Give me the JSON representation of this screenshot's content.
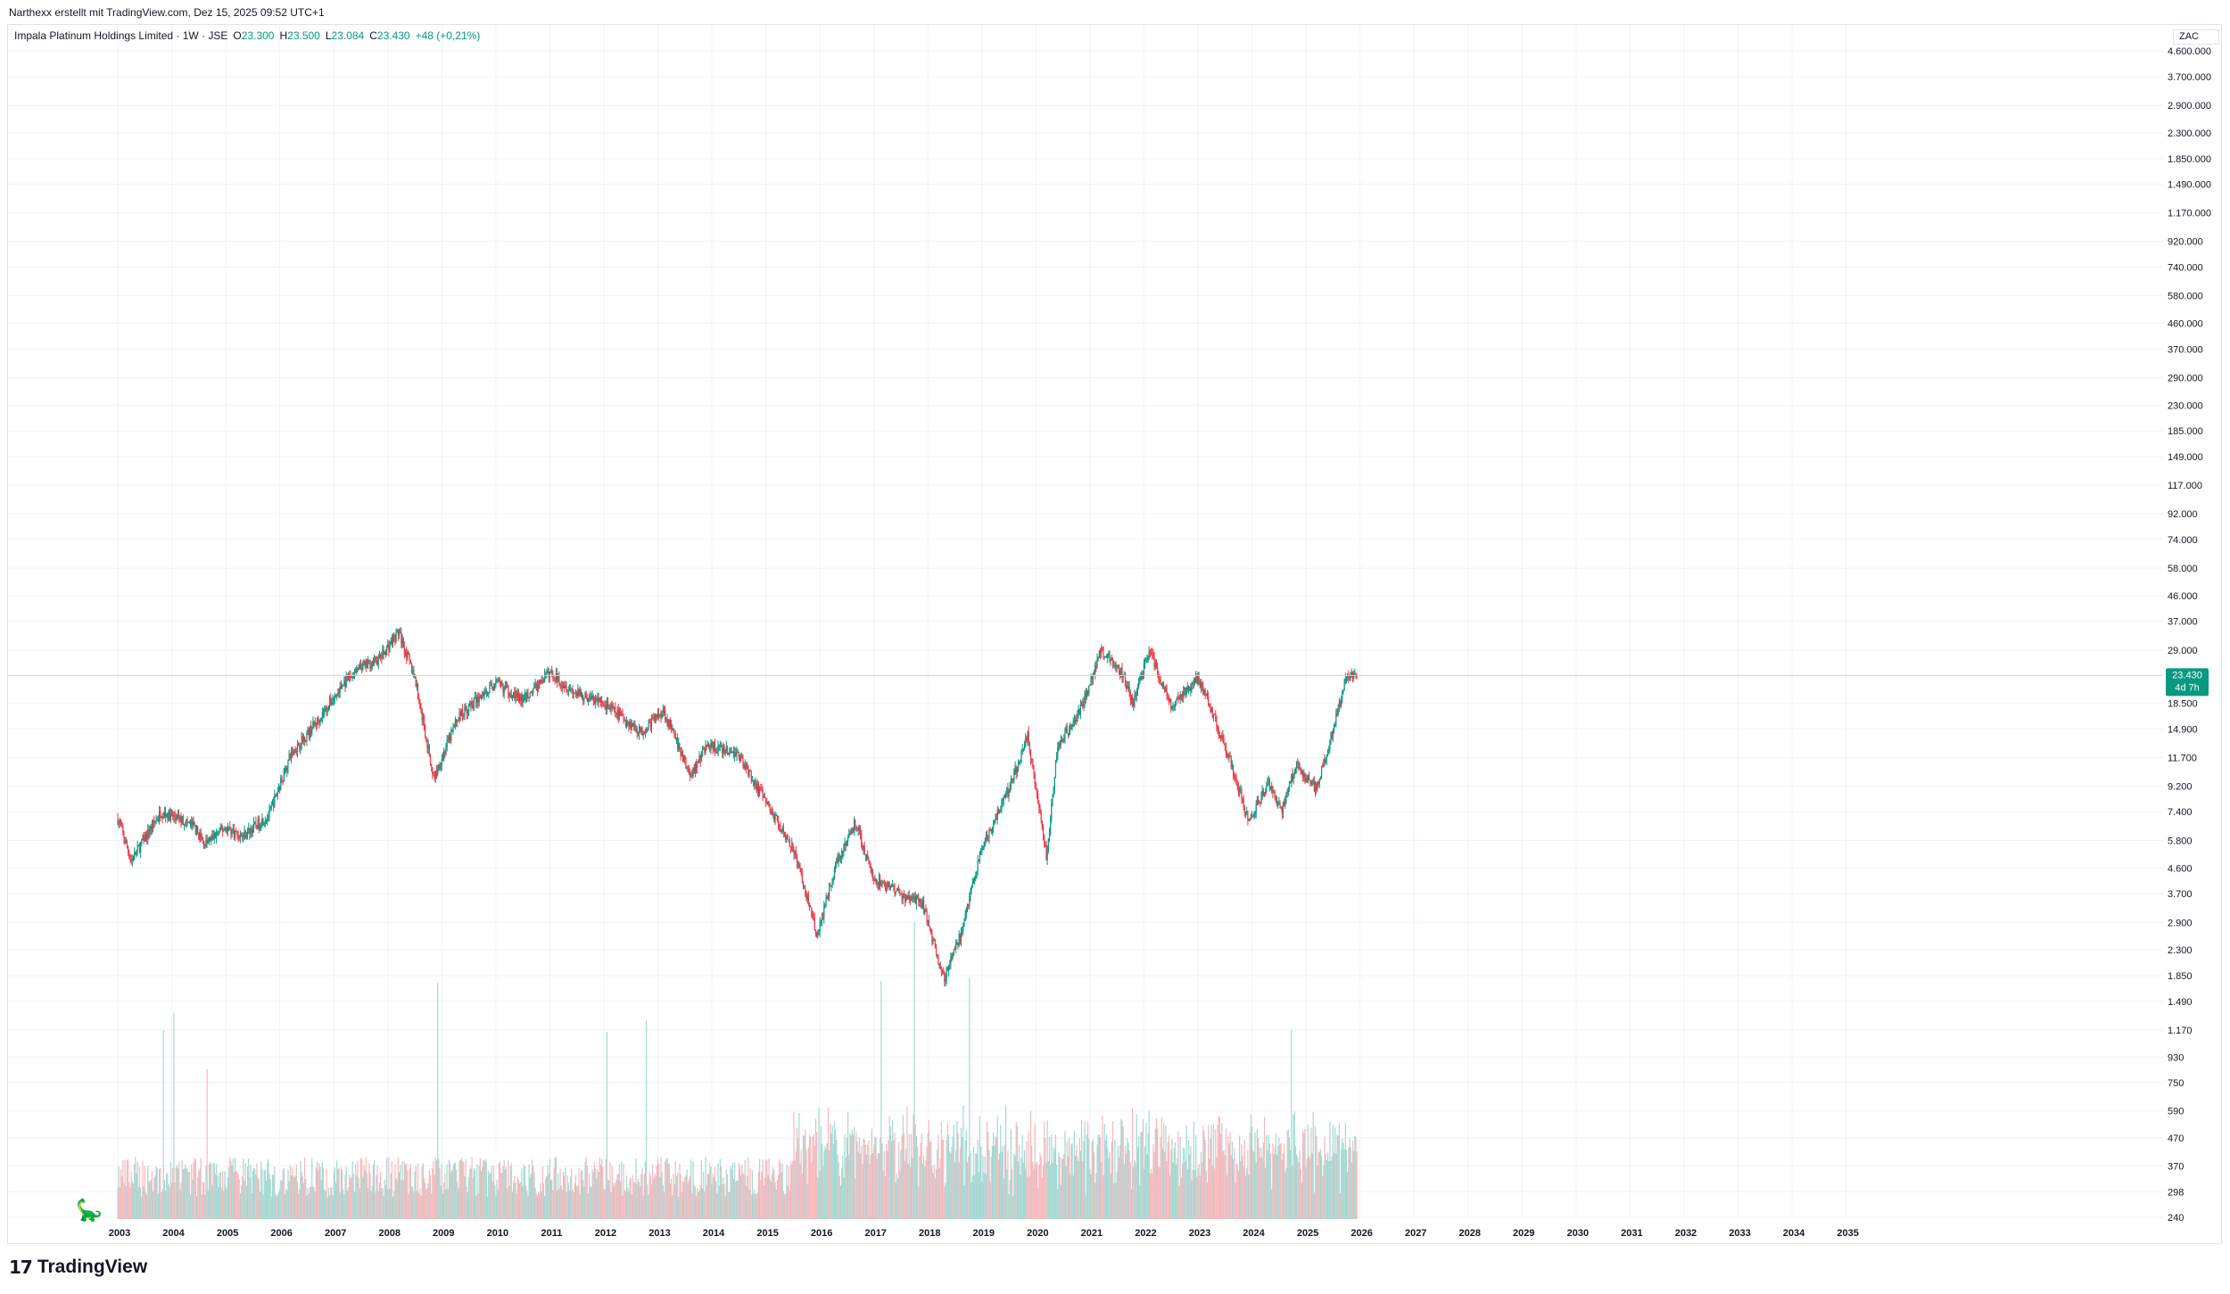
{
  "header": {
    "attribution": "Narthexx erstellt mit TradingView.com, Dez 15, 2025 09:52 UTC+1"
  },
  "legend": {
    "symbol": "Impala Platinum Holdings Limited · 1W · JSE",
    "open_label": "O",
    "open": "23.300",
    "high_label": "H",
    "high": "23.500",
    "low_label": "L",
    "low": "23.084",
    "close_label": "C",
    "close": "23.430",
    "change": "+48 (+0,21%)"
  },
  "currency_button": "ZAC",
  "price_badge": {
    "price": "23.430",
    "countdown": "4d 7h",
    "color": "#089981"
  },
  "brand": {
    "logo_mark": "17",
    "name": "TradingView"
  },
  "colors": {
    "up": "#089981",
    "down": "#f23645",
    "up_volume": "#a3d9d2",
    "down_volume": "#f7b8bd",
    "grid": "#f0f3fa"
  },
  "chart_data": {
    "type": "candlestick",
    "title": "Impala Platinum Holdings Limited",
    "interval": "1W",
    "exchange": "JSE",
    "currency": "ZAC",
    "y_scale": "log",
    "grid": true,
    "y_ticks": [
      "4.600.000",
      "3.700.000",
      "2.900.000",
      "2.300.000",
      "1.850.000",
      "1.490.000",
      "1.170.000",
      "920.000",
      "740.000",
      "580.000",
      "460.000",
      "370.000",
      "290.000",
      "230.000",
      "185.000",
      "149.000",
      "117.000",
      "92.000",
      "74.000",
      "58.000",
      "46.000",
      "37.000",
      "29.000",
      "18.500",
      "14.900",
      "11.700",
      "9.200",
      "7.400",
      "5.800",
      "4.600",
      "3.700",
      "2.900",
      "2.300",
      "1.850",
      "1.490",
      "1.170",
      "930",
      "750",
      "590",
      "470",
      "370",
      "298",
      "240"
    ],
    "x_ticks": [
      "2003",
      "2004",
      "2005",
      "2006",
      "2007",
      "2008",
      "2009",
      "2010",
      "2011",
      "2012",
      "2013",
      "2014",
      "2015",
      "2016",
      "2017",
      "2018",
      "2019",
      "2020",
      "2021",
      "2022",
      "2023",
      "2024",
      "2025",
      "2026",
      "2027",
      "2028",
      "2029",
      "2030",
      "2031",
      "2032",
      "2033",
      "2034",
      "2035"
    ],
    "price_path": [
      {
        "year": 2003.0,
        "close": 7000
      },
      {
        "year": 2003.25,
        "close": 4900
      },
      {
        "year": 2003.8,
        "close": 7400
      },
      {
        "year": 2004.4,
        "close": 6600
      },
      {
        "year": 2004.6,
        "close": 5600
      },
      {
        "year": 2005.0,
        "close": 6500
      },
      {
        "year": 2005.3,
        "close": 6000
      },
      {
        "year": 2005.8,
        "close": 7200
      },
      {
        "year": 2006.2,
        "close": 12000
      },
      {
        "year": 2006.7,
        "close": 16000
      },
      {
        "year": 2007.2,
        "close": 22000
      },
      {
        "year": 2007.5,
        "close": 25000
      },
      {
        "year": 2007.85,
        "close": 27000
      },
      {
        "year": 2008.2,
        "close": 34000
      },
      {
        "year": 2008.5,
        "close": 23000
      },
      {
        "year": 2008.85,
        "close": 9800
      },
      {
        "year": 2009.3,
        "close": 16500
      },
      {
        "year": 2010.0,
        "close": 22000
      },
      {
        "year": 2010.5,
        "close": 19000
      },
      {
        "year": 2011.0,
        "close": 24000
      },
      {
        "year": 2011.5,
        "close": 20000
      },
      {
        "year": 2012.0,
        "close": 18500
      },
      {
        "year": 2012.7,
        "close": 14500
      },
      {
        "year": 2013.1,
        "close": 17500
      },
      {
        "year": 2013.6,
        "close": 10000
      },
      {
        "year": 2013.9,
        "close": 13000
      },
      {
        "year": 2014.5,
        "close": 12000
      },
      {
        "year": 2015.0,
        "close": 8000
      },
      {
        "year": 2015.5,
        "close": 5500
      },
      {
        "year": 2015.95,
        "close": 2600
      },
      {
        "year": 2016.3,
        "close": 4800
      },
      {
        "year": 2016.65,
        "close": 6800
      },
      {
        "year": 2017.0,
        "close": 4200
      },
      {
        "year": 2017.5,
        "close": 3700
      },
      {
        "year": 2017.9,
        "close": 3400
      },
      {
        "year": 2018.3,
        "close": 1800
      },
      {
        "year": 2018.6,
        "close": 2600
      },
      {
        "year": 2019.0,
        "close": 5400
      },
      {
        "year": 2019.5,
        "close": 9000
      },
      {
        "year": 2019.85,
        "close": 14000
      },
      {
        "year": 2020.2,
        "close": 5000
      },
      {
        "year": 2020.4,
        "close": 13000
      },
      {
        "year": 2020.8,
        "close": 17000
      },
      {
        "year": 2021.2,
        "close": 29000
      },
      {
        "year": 2021.6,
        "close": 24000
      },
      {
        "year": 2021.8,
        "close": 18500
      },
      {
        "year": 2022.1,
        "close": 29000
      },
      {
        "year": 2022.5,
        "close": 18000
      },
      {
        "year": 2023.0,
        "close": 23000
      },
      {
        "year": 2023.5,
        "close": 13000
      },
      {
        "year": 2023.95,
        "close": 6800
      },
      {
        "year": 2024.3,
        "close": 9500
      },
      {
        "year": 2024.55,
        "close": 7500
      },
      {
        "year": 2024.8,
        "close": 11000
      },
      {
        "year": 2025.2,
        "close": 9000
      },
      {
        "year": 2025.6,
        "close": 17500
      },
      {
        "year": 2025.75,
        "close": 23000
      },
      {
        "year": 2025.96,
        "close": 23430
      }
    ]
  }
}
